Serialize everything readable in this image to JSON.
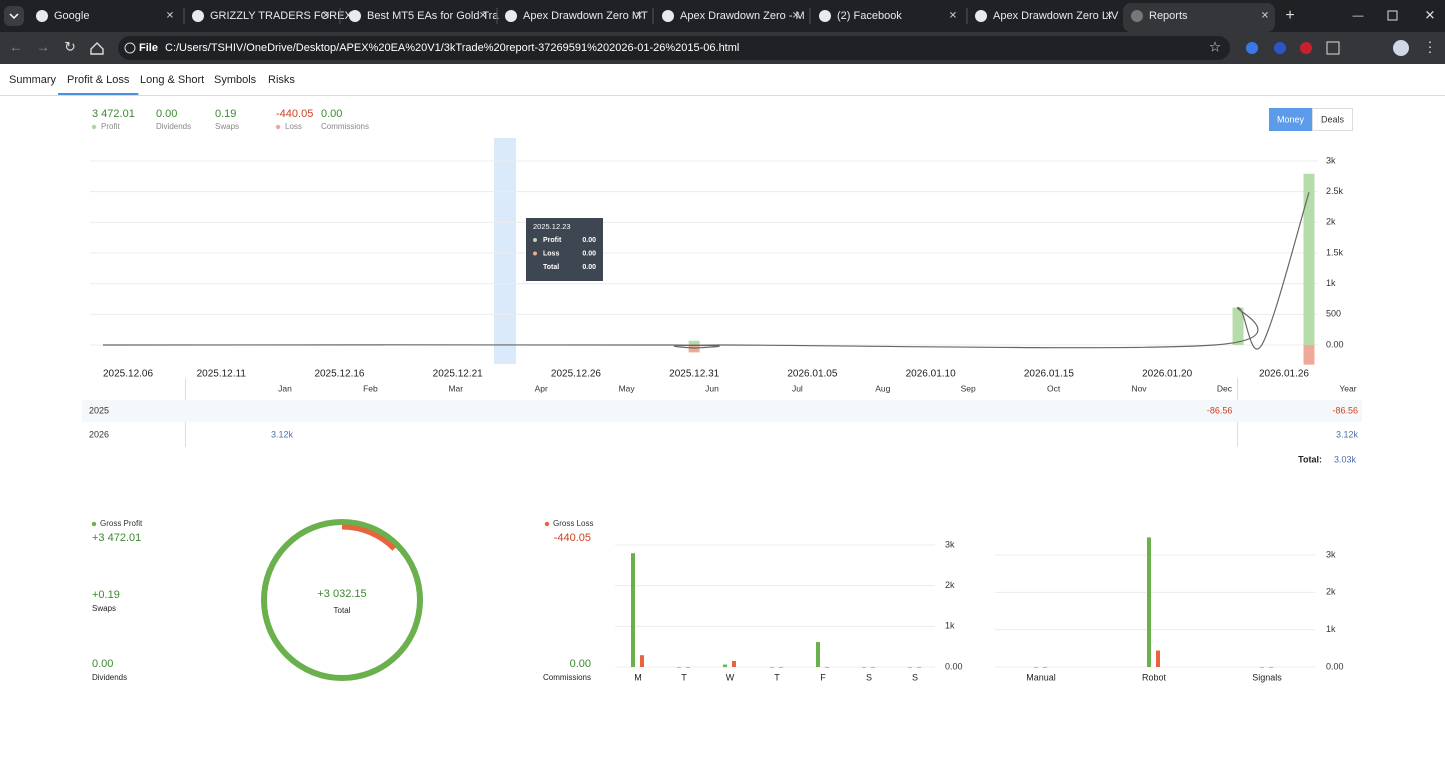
{
  "browser": {
    "tabs": [
      "Google",
      "GRIZZLY TRADERS FOREX",
      "Best MT5 EAs for Gold Tra",
      "Apex Drawdown Zero MT",
      "Apex Drawdown Zero - M",
      "(2) Facebook",
      "Apex Drawdown Zero LIV",
      "Reports"
    ],
    "active_tab": 7,
    "scheme": "File",
    "url": "C:/Users/TSHIV/OneDrive/Desktop/APEX%20EA%20V1/3kTrade%20report-37269591%202026-01-26%2015-06.html"
  },
  "nav": {
    "items": [
      "Summary",
      "Profit & Loss",
      "Long & Short",
      "Symbols",
      "Risks"
    ],
    "active": 1
  },
  "stats": [
    {
      "value": "3 472.01",
      "label": "Profit",
      "color": "#3a8a2e",
      "dot": "#a8d8a0"
    },
    {
      "value": "0.00",
      "label": "Dividends",
      "color": "#3a8a2e"
    },
    {
      "value": "0.19",
      "label": "Swaps",
      "color": "#3a8a2e"
    },
    {
      "value": "-440.05",
      "label": "Loss",
      "color": "#d0401e",
      "dot": "#f0a898"
    },
    {
      "value": "0.00",
      "label": "Commissions",
      "color": "#3a8a2e"
    }
  ],
  "buttons": [
    "Money",
    "Deals"
  ],
  "chart_data": [
    {
      "type": "bar",
      "xlim": [
        "2025.12.06",
        "2026.01.26"
      ],
      "ylim": [
        -350,
        3000
      ],
      "xticks": [
        "2025.12.06",
        "2025.12.11",
        "2025.12.16",
        "2025.12.21",
        "2025.12.26",
        "2025.12.31",
        "2026.01.05",
        "2026.01.10",
        "2026.01.15",
        "2026.01.20",
        "2026.01.26"
      ],
      "yticks": [
        {
          "value": 0,
          "label": "0.00"
        },
        500,
        {
          "value": 1000,
          "label": "1k"
        },
        {
          "value": 1500,
          "label": "1.5k"
        },
        {
          "value": 2000,
          "label": "2k"
        },
        {
          "value": 2500,
          "label": "2.5k"
        },
        {
          "value": 3000,
          "label": "3k"
        }
      ],
      "grid": true,
      "series": [
        {
          "type": "bar",
          "color": "#b5dca9",
          "x": [
            "2025.12.31",
            "2026.01.23",
            "2026.01.26"
          ],
          "values": [
            70,
            610,
            2792
          ]
        },
        {
          "type": "bar",
          "color": "#f0a898",
          "x": [
            "2025.12.31",
            "2026.01.26"
          ],
          "values": [
            -120,
            -320
          ]
        },
        {
          "type": "line",
          "color": "#666666",
          "x": [
            "2025.12.06",
            "2025.12.30",
            "2025.12.31",
            "2026.01.01",
            "2026.01.22",
            "2026.01.23",
            "2026.01.24",
            "2026.01.26"
          ],
          "values": [
            0,
            0,
            -50,
            0,
            0,
            610,
            0,
            2490
          ]
        }
      ],
      "tooltip": {
        "date": "2025.12.23",
        "rows": [
          {
            "label": "Profit",
            "value": "0.00"
          },
          {
            "label": "Loss",
            "value": "0.00"
          },
          {
            "label": "Total",
            "value": "0.00"
          }
        ]
      }
    },
    {
      "type": "bar",
      "categories": [
        "M",
        "T",
        "W",
        "T",
        "F",
        "S",
        "S"
      ],
      "ylim": [
        0,
        3000
      ],
      "yticks": [
        {
          "value": 0,
          "label": "0.00"
        },
        {
          "value": 1000,
          "label": "1k"
        },
        {
          "value": 2000,
          "label": "2k"
        },
        {
          "value": 3000,
          "label": "3k"
        }
      ],
      "grid": true,
      "series": [
        {
          "color": "#6ab04c",
          "values": [
            2798,
            0,
            60,
            0,
            614,
            0,
            0
          ]
        },
        {
          "color": "#e8643c",
          "values": [
            290,
            0,
            150,
            0,
            0,
            0,
            0
          ]
        }
      ]
    },
    {
      "type": "bar",
      "categories": [
        "Manual",
        "Robot",
        "Signals"
      ],
      "ylim": [
        0,
        3000
      ],
      "yticks": [
        {
          "value": 0,
          "label": "0.00"
        },
        {
          "value": 1000,
          "label": "1k"
        },
        {
          "value": 2000,
          "label": "2k"
        },
        {
          "value": 3000,
          "label": "3k"
        }
      ],
      "grid": true,
      "series": [
        {
          "color": "#6ab04c",
          "values": [
            0,
            3472.01,
            0
          ]
        },
        {
          "color": "#e8643c",
          "values": [
            0,
            440.05,
            0
          ]
        }
      ]
    },
    {
      "type": "ring",
      "values": [
        3472.01,
        440.05
      ],
      "colors": [
        "#6ab04c",
        "#e8643c"
      ],
      "center_value": "+3 032.15",
      "center_label": "Total"
    }
  ],
  "year_table": {
    "columns": [
      "Jan",
      "Feb",
      "Mar",
      "Apr",
      "May",
      "Jun",
      "Jul",
      "Aug",
      "Sep",
      "Oct",
      "Nov",
      "Dec",
      "Year"
    ],
    "rows": [
      {
        "year": "2025",
        "cells": [
          null,
          null,
          null,
          null,
          null,
          null,
          null,
          null,
          null,
          null,
          null,
          "-86.56",
          "-86.56"
        ]
      },
      {
        "year": "2026",
        "cells": [
          "3.12k",
          null,
          null,
          null,
          null,
          null,
          null,
          null,
          null,
          null,
          null,
          null,
          "3.12k"
        ]
      }
    ],
    "total_label": "Total:",
    "total": "3.03k"
  },
  "gross_profit": {
    "label": "Gross Profit",
    "value": "+3 472.01",
    "swaps": {
      "value": "+0.19",
      "label": "Swaps"
    },
    "dividends": {
      "value": "0.00",
      "label": "Dividends"
    }
  },
  "gross_loss": {
    "label": "Gross Loss",
    "value": "-440.05",
    "commissions": {
      "value": "0.00",
      "label": "Commissions"
    }
  }
}
